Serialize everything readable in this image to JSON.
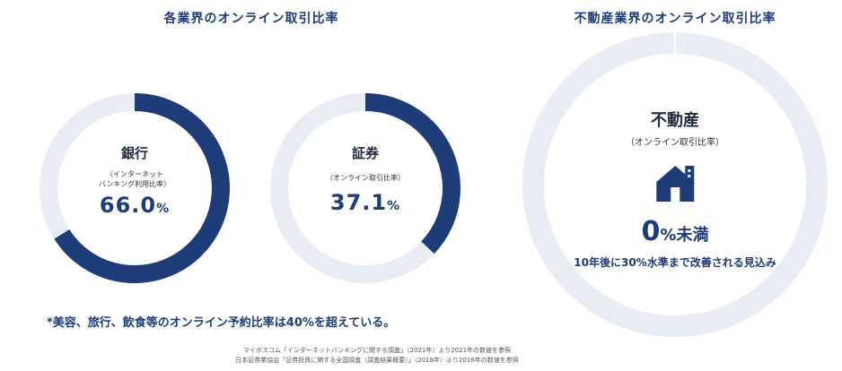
{
  "left_title": "各業界のオンライン取引比率",
  "right_title": "不動産業界のオンライン取引比率",
  "chart_data": [
    {
      "type": "pie",
      "title": "銀行",
      "subtitle_line1": "（インターネット",
      "subtitle_line2": "バンキング利用比率）",
      "value": 66.0,
      "value_label": "66.0",
      "unit": "%",
      "colors": {
        "filled": "#1d3c78",
        "track": "#e8ecf3"
      }
    },
    {
      "type": "pie",
      "title": "証券",
      "subtitle_line1": "（オンライン取引比率）",
      "value": 37.1,
      "value_label": "37.1",
      "unit": "%",
      "colors": {
        "filled": "#1d3c78",
        "track": "#e8ecf3"
      }
    },
    {
      "type": "pie",
      "title": "不動産",
      "subtitle_line1": "（オンライン取引比率）",
      "value": 0,
      "value_label": "0",
      "unit": "%未満",
      "note": "10年後に30%水準まで改善される見込み",
      "icon": "house-icon",
      "colors": {
        "filled": "#1d3c78",
        "track": "#e8ecf3"
      }
    }
  ],
  "footnote": "*美容、旅行、飲食等のオンライン予約比率は40%を超えている。",
  "source_line1": "マイボスコム「インターネットバンキングに関する調査」（2021年）より2021年の数値を参照",
  "source_line2": "日本証券業協会「証券投資に関する全国調査（調査結果概要）」（2018年）より2018年の数値を参照"
}
